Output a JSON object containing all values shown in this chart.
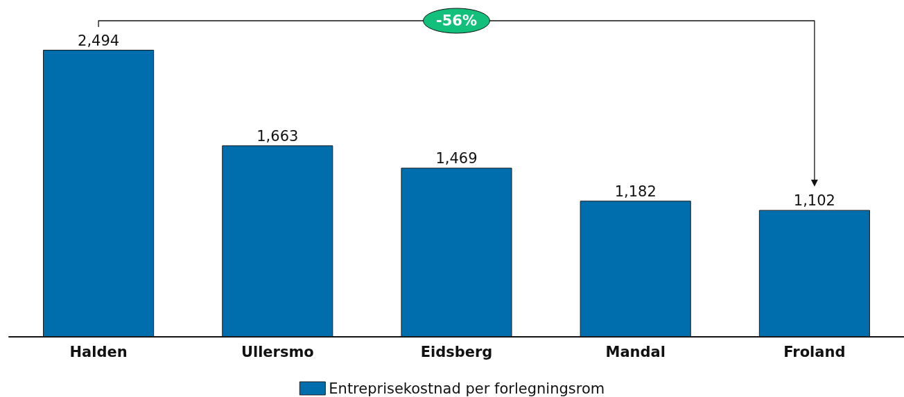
{
  "chart_data": {
    "type": "bar",
    "categories": [
      "Halden",
      "Ullersmo",
      "Eidsberg",
      "Mandal",
      "Froland"
    ],
    "series": [
      {
        "name": "Entreprisekostnad per forlegningsrom",
        "color": "#006ead",
        "values": [
          2494,
          1663,
          1469,
          1182,
          1102
        ],
        "value_labels": [
          "2,494",
          "1,663",
          "1,469",
          "1,182",
          "1,102"
        ]
      }
    ],
    "annotations": [
      "-56%"
    ],
    "legend": "bottom"
  }
}
